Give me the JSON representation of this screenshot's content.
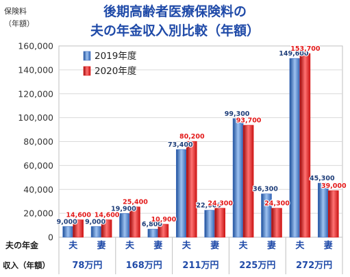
{
  "chart_data": {
    "type": "bar",
    "title_line1": "後期高齢者医療保険料の",
    "title_line2": "夫の年金収入別比較（年額）",
    "ylabel_line1": "保険料",
    "ylabel_line2": "（年額）",
    "xlabel_line1": "夫の年金",
    "xlabel_line2": "収入（年額）",
    "ylim": [
      0,
      160000
    ],
    "yticks": [
      "0",
      "20,000",
      "40,000",
      "60,000",
      "80,000",
      "100,000",
      "120,000",
      "140,000",
      "160,000"
    ],
    "legend_position": "top-left",
    "groups": [
      "78万円",
      "168万円",
      "211万円",
      "225万円",
      "272万円"
    ],
    "categories": [
      "夫",
      "妻",
      "夫",
      "妻",
      "夫",
      "妻",
      "夫",
      "妻",
      "夫",
      "妻"
    ],
    "series": [
      {
        "name": "2019年度",
        "color": "#4472c4",
        "values": [
          9000,
          9000,
          19900,
          6800,
          73400,
          22600,
          99300,
          36300,
          149600,
          45300
        ]
      },
      {
        "name": "2020年度",
        "color": "#e31a1a",
        "values": [
          14600,
          14600,
          25400,
          10900,
          80200,
          24300,
          93700,
          24300,
          153700,
          39000
        ]
      }
    ],
    "data_labels": [
      [
        "9,000",
        "9,000",
        "19,900",
        "6,800",
        "73,400",
        "22,600",
        "99,300",
        "36,300",
        "149,600",
        "45,300"
      ],
      [
        "14,600",
        "14,600",
        "25,400",
        "10,900",
        "80,200",
        "24,300",
        "93,700",
        "24,300",
        "153,700",
        "39,000"
      ]
    ],
    "grid": true
  }
}
